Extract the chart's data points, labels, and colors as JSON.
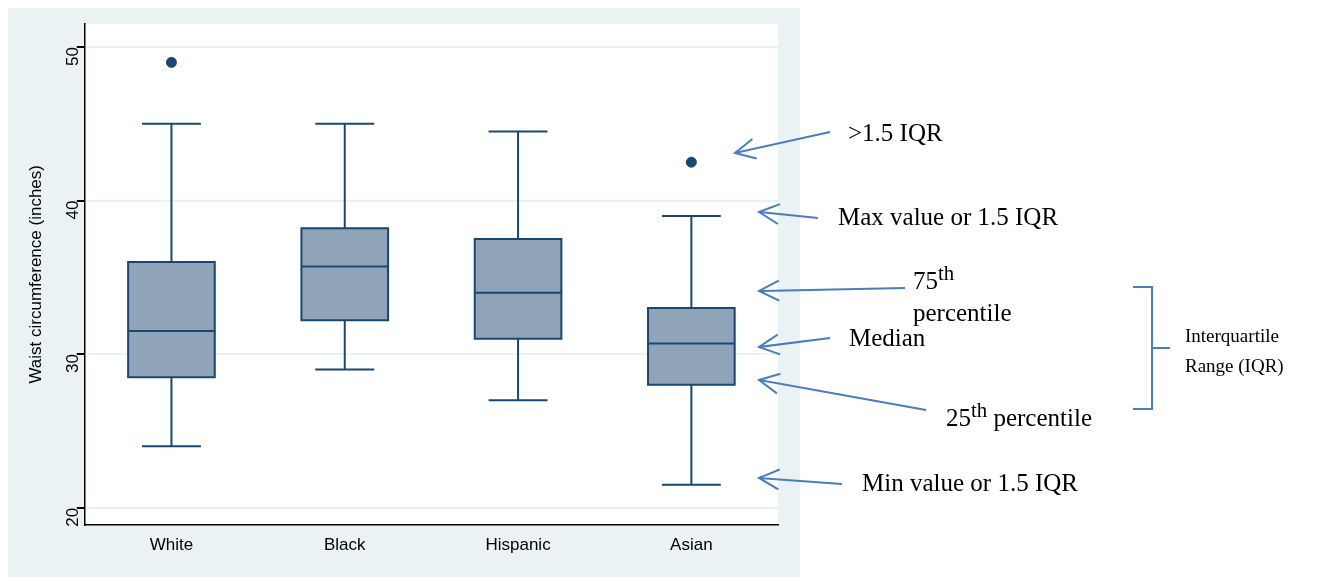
{
  "chart_data": {
    "type": "box",
    "ylabel": "Waist circumference (inches)",
    "categories": [
      "White",
      "Black",
      "Hispanic",
      "Asian"
    ],
    "boxes": [
      {
        "low": 24,
        "q1": 28.5,
        "median": 31.5,
        "q3": 36,
        "high": 45,
        "outliers": [
          49
        ]
      },
      {
        "low": 29,
        "q1": 32.2,
        "median": 35.7,
        "q3": 38.2,
        "high": 45
      },
      {
        "low": 27,
        "q1": 31,
        "median": 34,
        "q3": 37.5,
        "high": 44.5
      },
      {
        "low": 21.5,
        "q1": 28,
        "median": 30.7,
        "q3": 33,
        "high": 39,
        "outliers": [
          42.5
        ]
      }
    ],
    "color": "#8fa4b8",
    "ylim": [
      18.9,
      51.5
    ],
    "yticks": [
      20,
      30,
      40,
      50
    ],
    "grid": "y",
    "legend": false,
    "annotations": [
      ">1.5 IQR",
      "Max value or 1.5 IQR",
      "75$^{th}$ percentile",
      "Median",
      "25$^{th}$ percentile",
      "Min value or 1.5 IQR",
      "Interquartile Range (IQR)"
    ]
  }
}
